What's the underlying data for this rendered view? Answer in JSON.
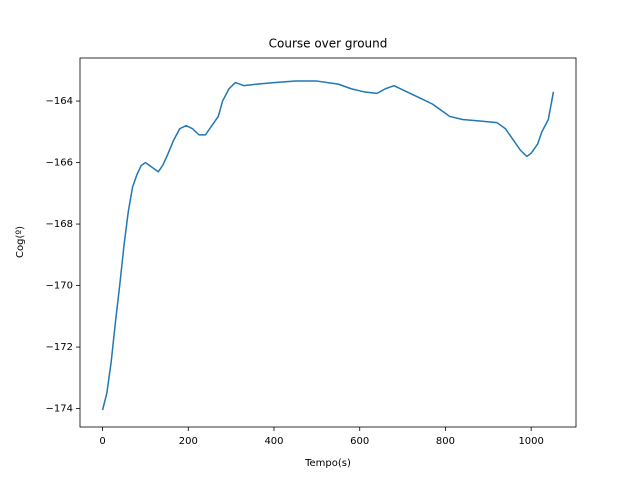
{
  "chart_data": {
    "type": "line",
    "title": "Course over ground",
    "x_label": "Tempo(s)",
    "y_label": "Cog(º)",
    "xlim": [
      -52.6,
      1104.6
    ],
    "ylim": [
      -174.6,
      -162.6
    ],
    "xticks": [
      0,
      200,
      400,
      600,
      800,
      1000
    ],
    "yticks": [
      {
        "value": -174,
        "label": "−174"
      },
      {
        "value": -172,
        "label": "−172"
      },
      {
        "value": -170,
        "label": "−170"
      },
      {
        "value": -168,
        "label": "−168"
      },
      {
        "value": -166,
        "label": "−166"
      },
      {
        "value": -164,
        "label": "−164"
      }
    ],
    "grid": false,
    "series": [
      {
        "color": "#1f77b4",
        "x": [
          0,
          10,
          20,
          30,
          40,
          50,
          60,
          70,
          80,
          90,
          100,
          110,
          120,
          130,
          140,
          150,
          165,
          180,
          195,
          210,
          225,
          240,
          255,
          270,
          280,
          295,
          310,
          330,
          360,
          400,
          450,
          500,
          550,
          580,
          610,
          640,
          660,
          680,
          710,
          740,
          770,
          790,
          810,
          840,
          880,
          920,
          940,
          960,
          975,
          990,
          1000,
          1015,
          1025,
          1040,
          1052
        ],
        "values": [
          -174.05,
          -173.5,
          -172.5,
          -171.2,
          -170,
          -168.7,
          -167.6,
          -166.8,
          -166.4,
          -166.1,
          -166,
          -166.1,
          -166.2,
          -166.3,
          -166.1,
          -165.8,
          -165.3,
          -164.9,
          -164.8,
          -164.9,
          -165.1,
          -165.1,
          -164.8,
          -164.5,
          -164.0,
          -163.6,
          -163.4,
          -163.5,
          -163.45,
          -163.4,
          -163.35,
          -163.35,
          -163.45,
          -163.6,
          -163.7,
          -163.75,
          -163.6,
          -163.5,
          -163.7,
          -163.9,
          -164.1,
          -164.3,
          -164.5,
          -164.6,
          -164.65,
          -164.7,
          -164.9,
          -165.3,
          -165.6,
          -165.8,
          -165.7,
          -165.4,
          -165.0,
          -164.6,
          -163.7
        ]
      }
    ]
  }
}
